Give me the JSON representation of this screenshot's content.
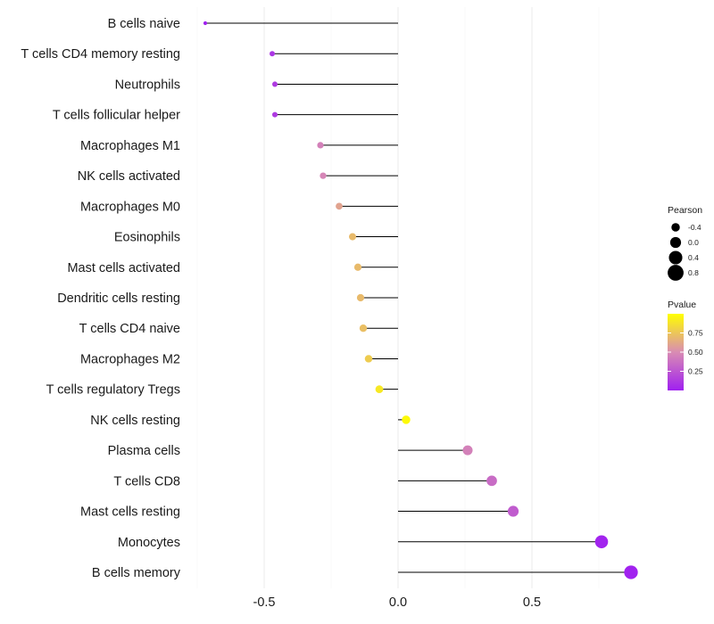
{
  "chart_data": {
    "type": "lollipop",
    "categories": [
      "B cells naive",
      "T cells CD4 memory resting",
      "Neutrophils",
      "T cells follicular helper",
      "Macrophages M1",
      "NK cells activated",
      "Macrophages M0",
      "Eosinophils",
      "Mast cells activated",
      "Dendritic cells resting",
      "T cells CD4 naive",
      "Macrophages M2",
      "T cells regulatory  Tregs ",
      "NK cells resting",
      "Plasma cells",
      "T cells CD8",
      "Mast cells resting",
      "Monocytes",
      "B cells memory"
    ],
    "values": [
      -0.72,
      -0.47,
      -0.46,
      -0.46,
      -0.29,
      -0.28,
      -0.22,
      -0.17,
      -0.15,
      -0.14,
      -0.13,
      -0.11,
      -0.07,
      0.03,
      0.26,
      0.35,
      0.43,
      0.76,
      0.87
    ],
    "pvalues": [
      0.01,
      0.1,
      0.12,
      0.12,
      0.45,
      0.47,
      0.6,
      0.7,
      0.7,
      0.7,
      0.72,
      0.78,
      0.9,
      0.98,
      0.45,
      0.35,
      0.28,
      0.02,
      0.01
    ],
    "x_ticks": [
      -0.5,
      0.0,
      0.5
    ],
    "x_tick_labels": [
      "-0.5",
      "0.0",
      "0.5"
    ],
    "xlim": [
      -0.8,
      0.92
    ],
    "legend": {
      "size_title": "Pearson",
      "size_values": [
        -0.4,
        0.0,
        0.4,
        0.8
      ],
      "size_labels": [
        "-0.4",
        "0.0",
        "0.4",
        "0.8"
      ],
      "color_title": "Pvalue",
      "color_ticks": [
        0.75,
        0.5,
        0.25
      ],
      "color_labels": [
        "0.75",
        "0.50",
        "0.25"
      ],
      "color_low": "#a020f0",
      "color_mid": "#d98cb3",
      "color_high": "#ffff00",
      "position": "right"
    }
  }
}
